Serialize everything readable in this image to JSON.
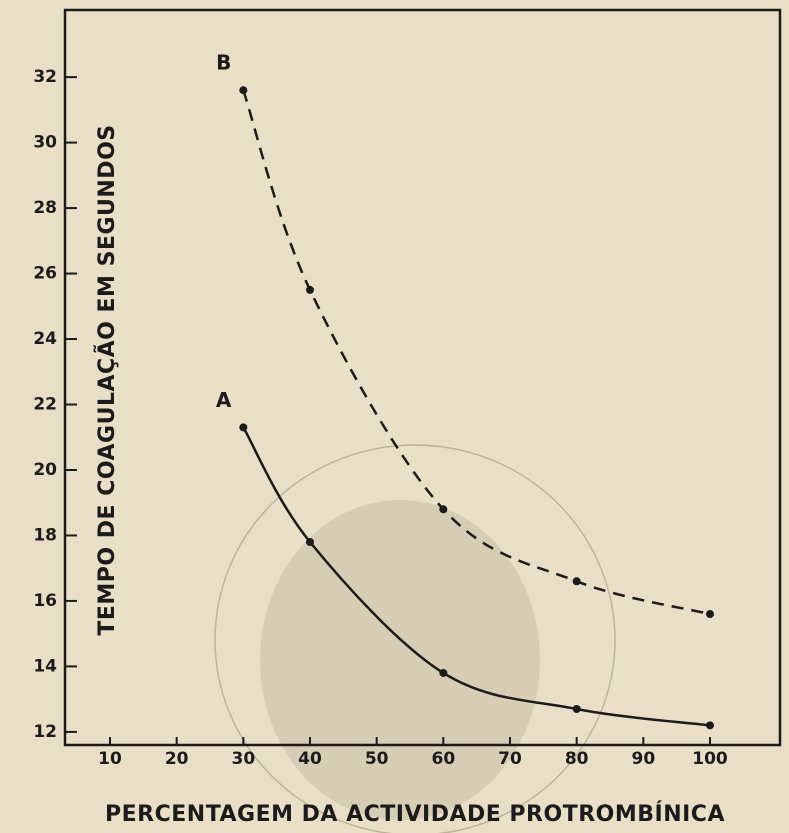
{
  "chart_data": {
    "type": "line",
    "x_label": "PERCENTAGEM DA ACTIVIDADE PROTROMBÍNICA",
    "y_label": "TEMPO DE COAGULAÇÃO EM SEGUNDOS",
    "x": [
      30,
      40,
      60,
      80,
      100
    ],
    "series": [
      {
        "name": "A",
        "color": "#1b1b1b",
        "dashed": false,
        "values": [
          21.3,
          17.8,
          13.8,
          12.7,
          12.2
        ]
      },
      {
        "name": "B",
        "color": "#1b1b1b",
        "dashed": true,
        "values": [
          31.6,
          25.5,
          18.8,
          16.6,
          15.6
        ]
      }
    ],
    "xlim": [
      3.25,
      110.5
    ],
    "xticks": [
      10,
      20,
      30,
      40,
      50,
      60,
      70,
      80,
      90,
      100
    ],
    "ylim": [
      11.6,
      34.05
    ],
    "yticks": [
      12,
      14,
      16,
      18,
      20,
      22,
      24,
      26,
      28,
      30,
      32
    ],
    "grid": false
  }
}
